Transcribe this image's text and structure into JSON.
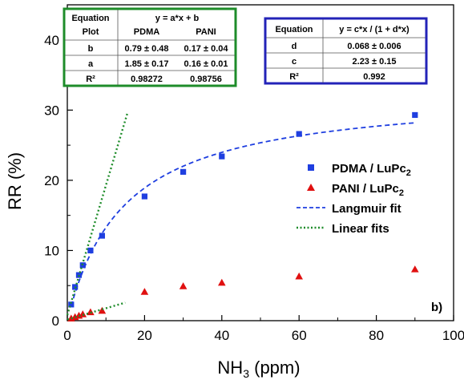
{
  "chart_data": {
    "type": "scatter",
    "panel_label": "b)",
    "xlabel": {
      "main": "NH",
      "sub": "3",
      "rest": " (ppm)"
    },
    "ylabel": "RR (%)",
    "xlim": [
      0,
      100
    ],
    "ylim": [
      0,
      45
    ],
    "x_ticks": [
      0,
      20,
      40,
      60,
      80,
      100
    ],
    "y_ticks": [
      0,
      10,
      20,
      30,
      40
    ],
    "grid": false,
    "legend_position": "right-middle",
    "series": [
      {
        "name": {
          "main": "PDMA / LuPc",
          "sub": "2"
        },
        "marker": "square",
        "color": "#1f3fe0",
        "x": [
          1,
          2,
          3,
          4,
          6,
          9,
          20,
          30,
          40,
          60,
          90
        ],
        "y": [
          2.3,
          4.8,
          6.5,
          7.9,
          10.0,
          12.1,
          17.7,
          21.2,
          23.4,
          26.6,
          29.3
        ]
      },
      {
        "name": {
          "main": "PANI / LuPc",
          "sub": "2"
        },
        "marker": "triangle",
        "color": "#e01010",
        "x": [
          1,
          2,
          3,
          4,
          6,
          9,
          20,
          30,
          40,
          60,
          90
        ],
        "y": [
          0.3,
          0.5,
          0.7,
          0.9,
          1.2,
          1.4,
          4.1,
          4.9,
          5.4,
          6.3,
          7.3
        ]
      }
    ],
    "fits": [
      {
        "name": "Langmuir fit",
        "style": "dashed",
        "color": "#1f3fe0",
        "equation": "y = c*x / (1 + d*x)",
        "c": 2.23,
        "d": 0.068,
        "x_range": [
          1,
          90
        ]
      },
      {
        "name": "Linear fits",
        "style": "dotted",
        "color": "#1e8c2a",
        "equation": "y = a*x + b",
        "lines": [
          {
            "a": 1.85,
            "b": 0.79,
            "x_range": [
              0,
              15.5
            ]
          },
          {
            "a": 0.16,
            "b": 0.17,
            "x_range": [
              0,
              15
            ]
          }
        ]
      }
    ],
    "legend": [
      {
        "label_main": "PDMA / LuPc",
        "label_sub": "2",
        "type": "square",
        "color": "#1f3fe0"
      },
      {
        "label_main": "PANI / LuPc",
        "label_sub": "2",
        "type": "triangle",
        "color": "#e01010"
      },
      {
        "label_main": "Langmuir fit",
        "label_sub": "",
        "type": "dashed",
        "color": "#1f3fe0"
      },
      {
        "label_main": "Linear fits",
        "label_sub": "",
        "type": "dotted",
        "color": "#1e8c2a"
      }
    ],
    "table_linear": {
      "border_color": "#1e8c2a",
      "header": {
        "left_top": "Equation",
        "left_bottom": "Plot",
        "equation": "y = a*x + b",
        "col1": "PDMA",
        "col2": "PANI"
      },
      "rows": [
        {
          "label": "b",
          "v1": "0.79 ± 0.48",
          "v2": "0.17 ± 0.04"
        },
        {
          "label": "a",
          "v1": "1.85 ± 0.17",
          "v2": "0.16 ± 0.01"
        },
        {
          "label": "R²",
          "v1": "0.98272",
          "v2": "0.98756"
        }
      ]
    },
    "table_langmuir": {
      "border_color": "#2323b8",
      "header": {
        "left": "Equation",
        "equation": "y = c*x / (1 + d*x)"
      },
      "rows": [
        {
          "label": "d",
          "value": "0.068 ± 0.006"
        },
        {
          "label": "c",
          "value": "2.23 ± 0.15"
        },
        {
          "label": "R²",
          "value": "0.992"
        }
      ]
    }
  }
}
